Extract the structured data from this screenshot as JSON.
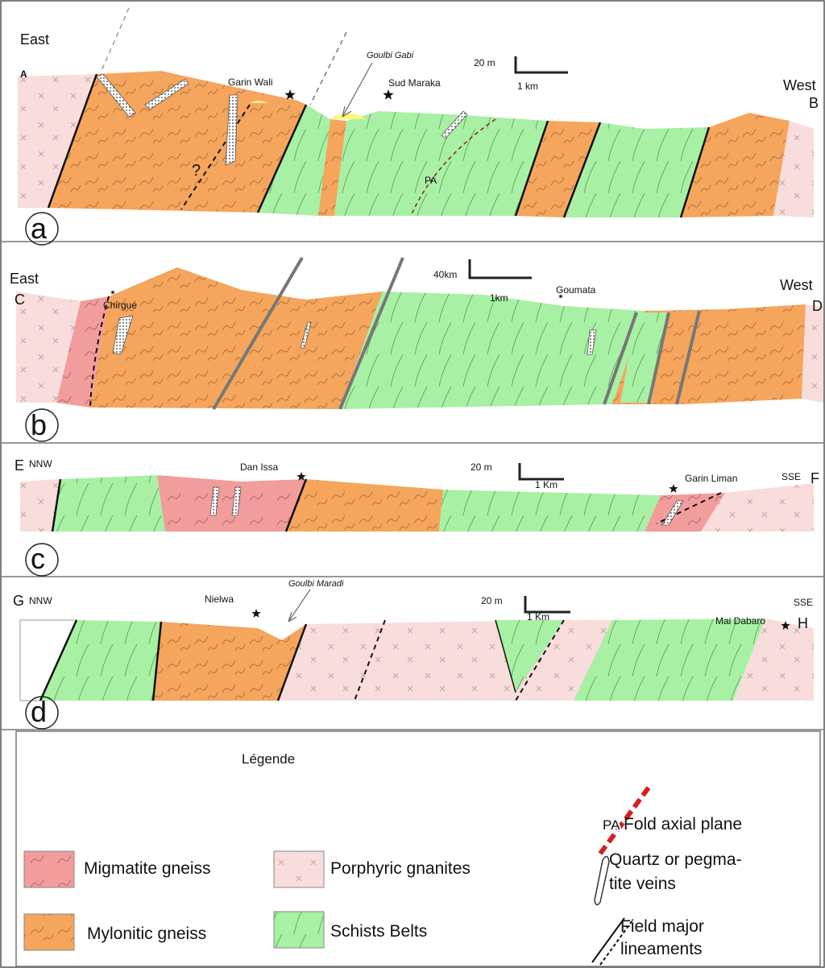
{
  "panels": [
    {
      "letter": "a",
      "left_direction": "East",
      "left_point": "A",
      "right_direction": "West",
      "right_point": "B",
      "scale_vertical": "20 m",
      "scale_horizontal": "1 km",
      "localities": [
        "Garin Wali",
        "Sud Maraka"
      ],
      "rivers": [
        "Goulbi Gabi"
      ],
      "annotations": [
        "?",
        "PA"
      ]
    },
    {
      "letter": "b",
      "left_direction": "East",
      "left_point": "C",
      "right_direction": "West",
      "right_point": "D",
      "scale_vertical": "40km",
      "scale_horizontal": "1km",
      "localities": [
        "Chirgué",
        "Goumata"
      ]
    },
    {
      "letter": "c",
      "left_direction": "NNW",
      "left_point": "E",
      "right_direction": "SSE",
      "right_point": "F",
      "scale_vertical": "20 m",
      "scale_horizontal": "1 Km",
      "localities": [
        "Dan Issa",
        "Garin Liman"
      ]
    },
    {
      "letter": "d",
      "left_direction": "NNW",
      "left_point": "G",
      "right_direction": "SSE",
      "right_point": "H",
      "scale_vertical": "20 m",
      "scale_horizontal": "1 Km",
      "localities": [
        "Nielwa",
        "Mai Dabaro"
      ],
      "rivers": [
        "Goulbi Maradi"
      ]
    }
  ],
  "legend": {
    "title": "Légende",
    "items": [
      {
        "symbol": "PA",
        "label_lines": [
          "Fold axial plane"
        ]
      },
      {
        "label_lines": [
          "Migmatite gneiss"
        ]
      },
      {
        "label_lines": [
          "Porphyric gnanites"
        ]
      },
      {
        "label_lines": [
          "Quartz or pegma-",
          "tite veins"
        ]
      },
      {
        "label_lines": [
          "Mylonitic gneiss"
        ]
      },
      {
        "label_lines": [
          "Schists Belts"
        ]
      },
      {
        "label_lines": [
          "Field major",
          "lineaments"
        ]
      }
    ]
  }
}
